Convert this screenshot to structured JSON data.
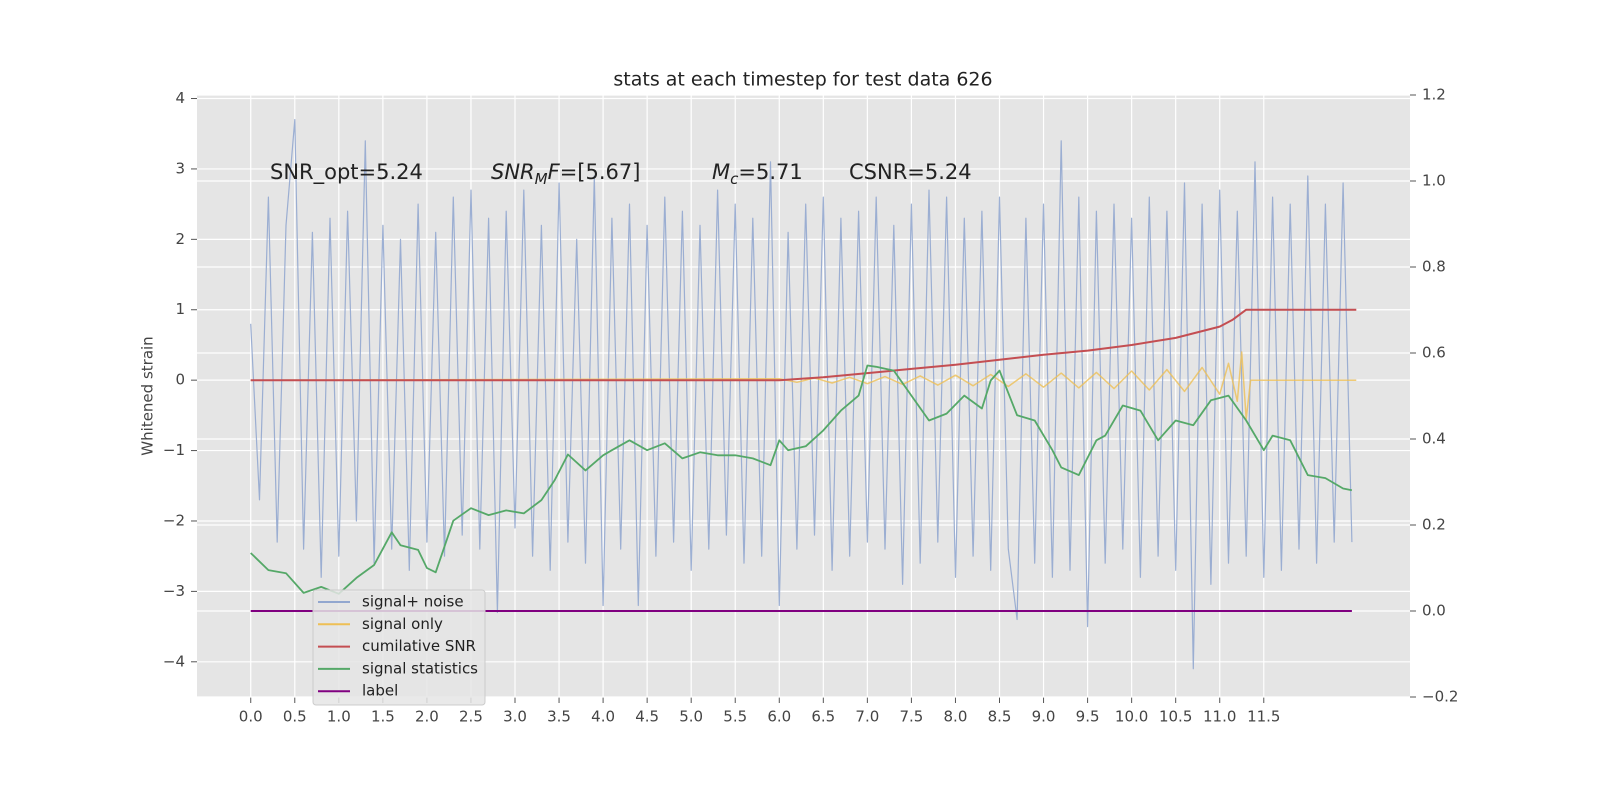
{
  "chart_data": {
    "type": "line",
    "title": "stats at each timestep for test data 626",
    "ylabel": "Whitened strain",
    "xlim": [
      -0.61,
      13.16
    ],
    "ylim": [
      -4.5,
      4.05
    ],
    "y2lim": [
      -0.2,
      1.2
    ],
    "grid": true,
    "legend": "lower left",
    "xticks": [
      {
        "value": 0,
        "label": "0.0"
      },
      {
        "value": 0.5,
        "label": "0.5"
      },
      {
        "value": 1,
        "label": "1.0"
      },
      {
        "value": 1.5,
        "label": "1.5"
      },
      {
        "value": 2,
        "label": "2.0"
      },
      {
        "value": 2.5,
        "label": "2.5"
      },
      {
        "value": 3,
        "label": "3.0"
      },
      {
        "value": 3.5,
        "label": "3.5"
      },
      {
        "value": 4,
        "label": "4.0"
      },
      {
        "value": 4.5,
        "label": "4.5"
      },
      {
        "value": 5,
        "label": "5.0"
      },
      {
        "value": 5.5,
        "label": "5.5"
      },
      {
        "value": 6,
        "label": "6.0"
      },
      {
        "value": 6.5,
        "label": "6.5"
      },
      {
        "value": 7,
        "label": "7.0"
      },
      {
        "value": 7.5,
        "label": "7.5"
      },
      {
        "value": 8,
        "label": "8.0"
      },
      {
        "value": 8.5,
        "label": "8.5"
      },
      {
        "value": 9,
        "label": "9.0"
      },
      {
        "value": 9.5,
        "label": "9.5"
      },
      {
        "value": 10,
        "label": "10.0"
      },
      {
        "value": 10.5,
        "label": "10.5"
      },
      {
        "value": 11,
        "label": "11.0"
      },
      {
        "value": 11.5,
        "label": "11.5"
      }
    ],
    "yticks": [
      {
        "value": -4,
        "label": "−4"
      },
      {
        "value": -3,
        "label": "−3"
      },
      {
        "value": -2,
        "label": "−2"
      },
      {
        "value": -1,
        "label": "−1"
      },
      0,
      1,
      2,
      3,
      4
    ],
    "y2ticks": [
      {
        "value": -0.2,
        "label": "−0.2"
      },
      {
        "value": 0,
        "label": "0.0"
      },
      {
        "value": 0.2,
        "label": "0.2"
      },
      {
        "value": 0.4,
        "label": "0.4"
      },
      {
        "value": 0.6,
        "label": "0.6"
      },
      {
        "value": 0.8,
        "label": "0.8"
      },
      {
        "value": 1.0,
        "label": "1.0"
      },
      {
        "value": 1.2,
        "label": "1.2"
      }
    ],
    "annotations": [
      [
        {
          "t": "SNR_opt=5.24",
          "sub": false,
          "it": false
        }
      ],
      [
        {
          "t": "SNR",
          "sub": false,
          "it": true
        },
        {
          "t": "M",
          "sub": true,
          "it": true
        },
        {
          "t": "F",
          "sub": false,
          "it": true
        },
        {
          "t": "=[5.67]",
          "sub": false,
          "it": false
        }
      ],
      [
        {
          "t": "M",
          "sub": false,
          "it": true
        },
        {
          "t": "c",
          "sub": true,
          "it": true
        },
        {
          "t": "=5.71",
          "sub": false,
          "it": false
        }
      ],
      [
        {
          "t": "CSNR=5.24",
          "sub": false,
          "it": false
        }
      ]
    ],
    "series": [
      {
        "name": "signal+ noise",
        "color": "#92a7cf",
        "axis": "y",
        "x": [
          0.0,
          0.1,
          0.2,
          0.3,
          0.4,
          0.5,
          0.6,
          0.7,
          0.8,
          0.9,
          1.0,
          1.1,
          1.2,
          1.3,
          1.4,
          1.5,
          1.6,
          1.7,
          1.8,
          1.9,
          2.0,
          2.1,
          2.2,
          2.3,
          2.4,
          2.5,
          2.6,
          2.7,
          2.8,
          2.9,
          3.0,
          3.1,
          3.2,
          3.3,
          3.4,
          3.5,
          3.6,
          3.7,
          3.8,
          3.9,
          4.0,
          4.1,
          4.2,
          4.3,
          4.4,
          4.5,
          4.6,
          4.7,
          4.8,
          4.9,
          5.0,
          5.1,
          5.2,
          5.3,
          5.4,
          5.5,
          5.6,
          5.7,
          5.8,
          5.9,
          6.0,
          6.1,
          6.2,
          6.3,
          6.4,
          6.5,
          6.6,
          6.7,
          6.8,
          6.9,
          7.0,
          7.1,
          7.2,
          7.3,
          7.4,
          7.5,
          7.6,
          7.7,
          7.8,
          7.9,
          8.0,
          8.1,
          8.2,
          8.3,
          8.4,
          8.5,
          8.6,
          8.7,
          8.8,
          8.9,
          9.0,
          9.1,
          9.2,
          9.3,
          9.4,
          9.5,
          9.6,
          9.7,
          9.8,
          9.9,
          10.0,
          10.1,
          10.2,
          10.3,
          10.4,
          10.5,
          10.6,
          10.7,
          10.8,
          10.9,
          11.0,
          11.1,
          11.2,
          11.3,
          11.4,
          11.5,
          11.6,
          11.7,
          11.8,
          11.9,
          12.0,
          12.1,
          12.2,
          12.3,
          12.4,
          12.5
        ],
        "values": [
          0.8,
          -1.7,
          2.6,
          -2.3,
          2.2,
          3.7,
          -2.4,
          2.1,
          -2.8,
          2.3,
          -2.5,
          2.4,
          -2.0,
          3.4,
          -2.6,
          2.2,
          -2.4,
          2.0,
          -2.7,
          2.5,
          -2.3,
          2.1,
          -2.5,
          2.6,
          -2.2,
          2.7,
          -2.4,
          2.3,
          -3.3,
          2.4,
          -2.1,
          2.7,
          -2.5,
          2.2,
          -2.7,
          2.8,
          -2.3,
          2.0,
          -2.6,
          2.9,
          -3.2,
          2.3,
          -2.4,
          2.5,
          -3.2,
          2.2,
          -2.5,
          2.6,
          -2.3,
          2.4,
          -2.7,
          2.2,
          -2.4,
          2.7,
          -2.2,
          2.5,
          -2.6,
          2.3,
          -2.5,
          3.1,
          -3.2,
          2.1,
          -2.4,
          2.5,
          -2.2,
          2.6,
          -2.7,
          2.3,
          -2.5,
          2.4,
          -2.3,
          2.6,
          -2.4,
          2.2,
          -2.9,
          2.5,
          -2.6,
          2.7,
          -2.3,
          2.6,
          -2.8,
          2.3,
          -2.5,
          2.4,
          -2.7,
          2.6,
          -2.4,
          -3.4,
          2.3,
          -2.6,
          2.5,
          -2.8,
          3.4,
          -2.7,
          2.6,
          -3.5,
          2.4,
          -2.6,
          2.5,
          -2.4,
          2.3,
          -2.8,
          2.6,
          -2.5,
          2.4,
          -2.7,
          2.8,
          -4.1,
          2.5,
          -2.9,
          2.7,
          -2.6,
          2.4,
          -2.5,
          3.1,
          -2.8,
          2.6,
          -2.7,
          2.5,
          -2.4,
          2.9,
          -2.6,
          2.5,
          -2.3,
          2.8,
          -2.3
        ]
      },
      {
        "name": "signal only",
        "color": "#eebf55",
        "axis": "y",
        "x": [
          0.0,
          6.0,
          6.2,
          6.4,
          6.6,
          6.8,
          7.0,
          7.2,
          7.4,
          7.6,
          7.8,
          8.0,
          8.2,
          8.4,
          8.6,
          8.8,
          9.0,
          9.2,
          9.4,
          9.6,
          9.8,
          10.0,
          10.2,
          10.4,
          10.6,
          10.8,
          11.0,
          11.1,
          11.2,
          11.25,
          11.3,
          11.35,
          12.55
        ],
        "values": [
          0,
          0.02,
          -0.03,
          0.03,
          -0.04,
          0.04,
          -0.05,
          0.05,
          -0.06,
          0.06,
          -0.07,
          0.07,
          -0.08,
          0.08,
          -0.09,
          0.09,
          -0.1,
          0.1,
          -0.11,
          0.11,
          -0.12,
          0.13,
          -0.14,
          0.15,
          -0.16,
          0.18,
          -0.2,
          0.24,
          -0.3,
          0.4,
          -0.55,
          0,
          0
        ]
      },
      {
        "name": "cumilative SNR",
        "color": "#c44e52",
        "axis": "y",
        "x": [
          0.0,
          6.0,
          6.5,
          7.0,
          7.5,
          8.0,
          8.5,
          9.0,
          9.5,
          10.0,
          10.5,
          11.0,
          11.15,
          11.3,
          12.55
        ],
        "values": [
          0,
          0,
          0.04,
          0.1,
          0.16,
          0.22,
          0.29,
          0.36,
          0.42,
          0.5,
          0.6,
          0.76,
          0.86,
          1.0,
          1.0
        ]
      },
      {
        "name": "signal statistics",
        "color": "#55a868",
        "axis": "y2",
        "x": [
          0.0,
          0.2,
          0.4,
          0.6,
          0.8,
          1.0,
          1.2,
          1.4,
          1.6,
          1.7,
          1.9,
          2.0,
          2.1,
          2.3,
          2.5,
          2.7,
          2.9,
          3.1,
          3.3,
          3.45,
          3.6,
          3.8,
          4.0,
          4.1,
          4.3,
          4.5,
          4.7,
          4.9,
          5.1,
          5.3,
          5.5,
          5.7,
          5.9,
          6.0,
          6.1,
          6.3,
          6.5,
          6.7,
          6.9,
          7.0,
          7.1,
          7.3,
          7.5,
          7.7,
          7.9,
          8.1,
          8.3,
          8.4,
          8.5,
          8.7,
          8.9,
          9.1,
          9.2,
          9.4,
          9.6,
          9.7,
          9.9,
          10.1,
          10.3,
          10.5,
          10.7,
          10.9,
          11.1,
          11.3,
          11.5,
          11.6,
          11.8,
          12.0,
          12.2,
          12.4,
          12.5
        ],
        "values": [
          0.135,
          0.095,
          0.088,
          0.042,
          0.056,
          0.04,
          0.077,
          0.107,
          0.183,
          0.153,
          0.142,
          0.1,
          0.09,
          0.21,
          0.239,
          0.223,
          0.234,
          0.227,
          0.258,
          0.304,
          0.364,
          0.327,
          0.362,
          0.374,
          0.397,
          0.374,
          0.39,
          0.355,
          0.369,
          0.362,
          0.362,
          0.355,
          0.339,
          0.397,
          0.374,
          0.383,
          0.42,
          0.466,
          0.501,
          0.571,
          0.568,
          0.559,
          0.501,
          0.443,
          0.459,
          0.501,
          0.471,
          0.536,
          0.559,
          0.455,
          0.443,
          0.374,
          0.334,
          0.316,
          0.397,
          0.408,
          0.478,
          0.466,
          0.397,
          0.443,
          0.432,
          0.49,
          0.501,
          0.443,
          0.374,
          0.408,
          0.397,
          0.316,
          0.309,
          0.285,
          0.281
        ]
      },
      {
        "name": "label",
        "color": "#800080",
        "axis": "y2",
        "x": [
          0.0,
          12.5
        ],
        "values": [
          0,
          0
        ]
      }
    ]
  }
}
